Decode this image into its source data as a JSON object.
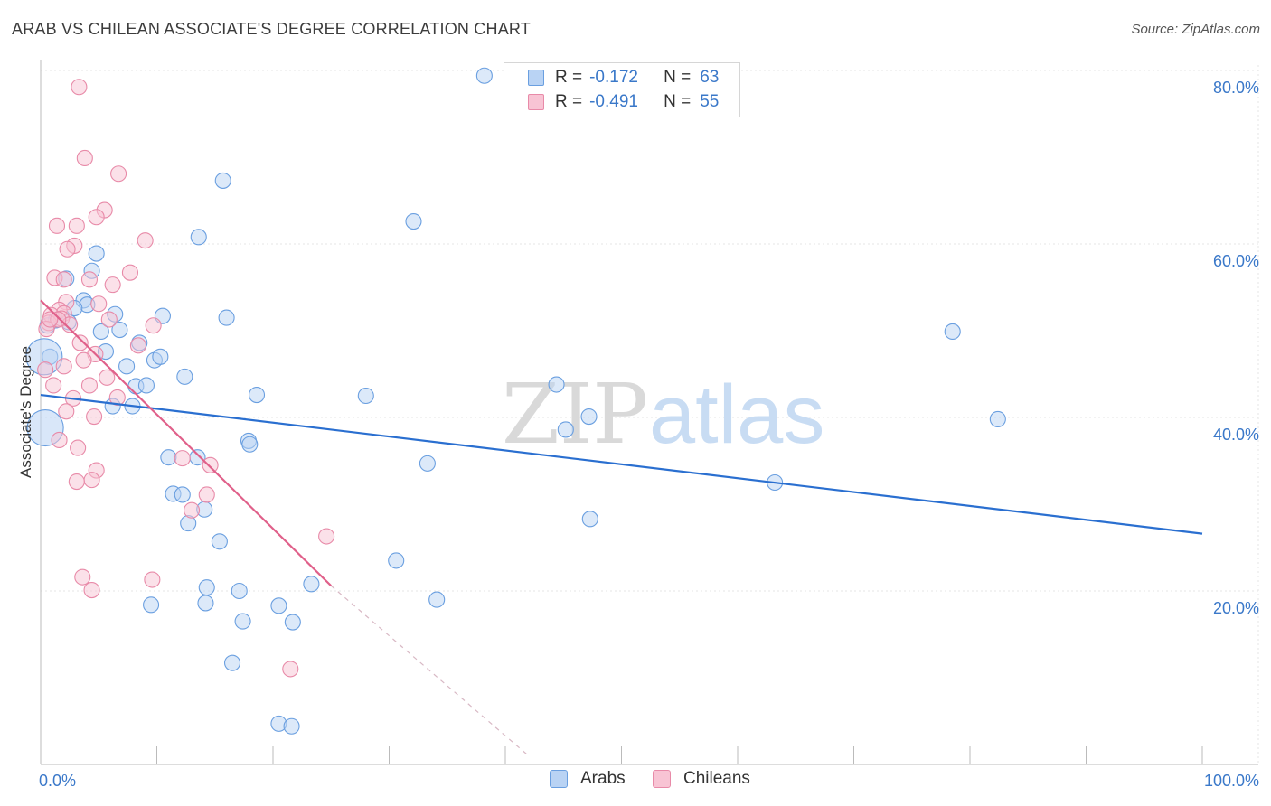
{
  "title": "ARAB VS CHILEAN ASSOCIATE'S DEGREE CORRELATION CHART",
  "source": "Source: ZipAtlas.com",
  "watermark": {
    "zip": "ZIP",
    "atlas": "atlas"
  },
  "legend": {
    "rows": [
      {
        "r_label": "R =",
        "r_value": "-0.172",
        "n_label": "N =",
        "n_value": "63",
        "color": "#b9d3f4",
        "border": "#6a9fe0"
      },
      {
        "r_label": "R =",
        "r_value": "-0.491",
        "n_label": "N =",
        "n_value": "55",
        "color": "#f8c4d4",
        "border": "#e88aa8"
      }
    ]
  },
  "bottom_legend": [
    {
      "label": "Arabs",
      "color": "#b9d3f4",
      "border": "#6a9fe0"
    },
    {
      "label": "Chileans",
      "color": "#f8c4d4",
      "border": "#e88aa8"
    }
  ],
  "chart_data": {
    "type": "scatter",
    "title": "ARAB VS CHILEAN ASSOCIATE'S DEGREE CORRELATION CHART",
    "xlabel": "",
    "ylabel": "Associate's Degree",
    "xlim": [
      0,
      100
    ],
    "ylim": [
      0,
      82
    ],
    "x_tick_labels": [
      "0.0%",
      "100.0%"
    ],
    "y_ticks": [
      20,
      40,
      60,
      80
    ],
    "y_tick_labels": [
      "20.0%",
      "40.0%",
      "60.0%",
      "80.0%"
    ],
    "series": [
      {
        "name": "Arabs",
        "color": "#6a9fe0",
        "fill": "#b9d3f4",
        "trend_color": "#2a6fd0",
        "trend": {
          "x0": 0,
          "y0": 42.6,
          "x1": 100,
          "y1": 26.6
        },
        "points": [
          [
            38.2,
            79.4
          ],
          [
            15.7,
            67.3
          ],
          [
            13.6,
            60.8
          ],
          [
            32.1,
            62.6
          ],
          [
            4.8,
            58.9
          ],
          [
            4.4,
            56.9
          ],
          [
            2.2,
            56.0
          ],
          [
            3.7,
            53.5
          ],
          [
            4.0,
            53.0
          ],
          [
            2.9,
            52.6
          ],
          [
            6.4,
            51.9
          ],
          [
            10.5,
            51.7
          ],
          [
            16.0,
            51.5
          ],
          [
            1.3,
            51.2
          ],
          [
            2.4,
            51.0
          ],
          [
            5.2,
            49.9
          ],
          [
            6.8,
            50.1
          ],
          [
            8.5,
            48.6
          ],
          [
            5.6,
            47.6
          ],
          [
            0.8,
            47.0
          ],
          [
            9.8,
            46.6
          ],
          [
            10.3,
            47.0
          ],
          [
            7.4,
            45.9
          ],
          [
            12.4,
            44.7
          ],
          [
            8.2,
            43.6
          ],
          [
            9.1,
            43.7
          ],
          [
            18.6,
            42.6
          ],
          [
            28.0,
            42.5
          ],
          [
            6.2,
            41.3
          ],
          [
            7.9,
            41.3
          ],
          [
            44.4,
            43.8
          ],
          [
            78.5,
            49.9
          ],
          [
            82.4,
            39.8
          ],
          [
            47.2,
            40.1
          ],
          [
            45.2,
            38.6
          ],
          [
            17.9,
            37.3
          ],
          [
            18.0,
            36.9
          ],
          [
            11.0,
            35.4
          ],
          [
            13.5,
            35.4
          ],
          [
            33.3,
            34.7
          ],
          [
            11.4,
            31.2
          ],
          [
            12.2,
            31.1
          ],
          [
            14.1,
            29.4
          ],
          [
            12.7,
            27.8
          ],
          [
            63.2,
            32.5
          ],
          [
            47.3,
            28.3
          ],
          [
            15.4,
            25.7
          ],
          [
            30.6,
            23.5
          ],
          [
            14.3,
            20.4
          ],
          [
            17.1,
            20.0
          ],
          [
            23.3,
            20.8
          ],
          [
            34.1,
            19.0
          ],
          [
            9.5,
            18.4
          ],
          [
            14.2,
            18.6
          ],
          [
            20.5,
            18.3
          ],
          [
            17.4,
            16.5
          ],
          [
            21.7,
            16.4
          ],
          [
            16.5,
            11.7
          ],
          [
            20.5,
            4.7
          ],
          [
            21.6,
            4.4
          ],
          [
            0.3,
            47.0
          ],
          [
            0.4,
            38.8
          ],
          [
            0.6,
            50.6
          ]
        ]
      },
      {
        "name": "Chileans",
        "color": "#e88aa8",
        "fill": "#f8c4d4",
        "trend_color": "#e0608a",
        "trend": {
          "x0": 0,
          "y0": 53.5,
          "x1": 25.0,
          "y1": 20.6
        },
        "trend_dashed": {
          "x0": 25.0,
          "y0": 20.6,
          "x1": 42.0,
          "y1": 1.0
        },
        "points": [
          [
            3.3,
            78.1
          ],
          [
            3.8,
            69.9
          ],
          [
            6.7,
            68.1
          ],
          [
            5.5,
            63.9
          ],
          [
            4.8,
            63.1
          ],
          [
            1.4,
            62.1
          ],
          [
            3.1,
            62.1
          ],
          [
            9.0,
            60.4
          ],
          [
            2.9,
            59.8
          ],
          [
            2.3,
            59.4
          ],
          [
            7.7,
            56.7
          ],
          [
            1.2,
            56.1
          ],
          [
            2.0,
            55.9
          ],
          [
            4.2,
            55.9
          ],
          [
            6.2,
            55.3
          ],
          [
            2.2,
            53.3
          ],
          [
            5.0,
            53.1
          ],
          [
            1.6,
            52.4
          ],
          [
            2.0,
            52.0
          ],
          [
            0.9,
            51.8
          ],
          [
            1.8,
            51.4
          ],
          [
            0.7,
            50.9
          ],
          [
            2.5,
            50.7
          ],
          [
            9.7,
            50.6
          ],
          [
            0.5,
            50.2
          ],
          [
            3.4,
            48.6
          ],
          [
            8.4,
            48.3
          ],
          [
            4.7,
            47.3
          ],
          [
            3.7,
            46.6
          ],
          [
            2.0,
            45.9
          ],
          [
            0.4,
            45.5
          ],
          [
            5.7,
            44.6
          ],
          [
            1.1,
            43.7
          ],
          [
            4.2,
            43.7
          ],
          [
            6.6,
            42.3
          ],
          [
            2.8,
            42.2
          ],
          [
            2.2,
            40.7
          ],
          [
            4.6,
            40.1
          ],
          [
            1.6,
            37.4
          ],
          [
            3.2,
            36.5
          ],
          [
            12.2,
            35.3
          ],
          [
            14.6,
            34.5
          ],
          [
            4.8,
            33.9
          ],
          [
            4.4,
            32.8
          ],
          [
            3.1,
            32.6
          ],
          [
            14.3,
            31.1
          ],
          [
            13.0,
            29.3
          ],
          [
            24.6,
            26.3
          ],
          [
            3.6,
            21.6
          ],
          [
            9.6,
            21.3
          ],
          [
            4.4,
            20.1
          ],
          [
            21.5,
            11.0
          ],
          [
            5.9,
            51.3
          ],
          [
            1.5,
            51.3
          ],
          [
            0.8,
            51.3
          ]
        ]
      }
    ]
  }
}
